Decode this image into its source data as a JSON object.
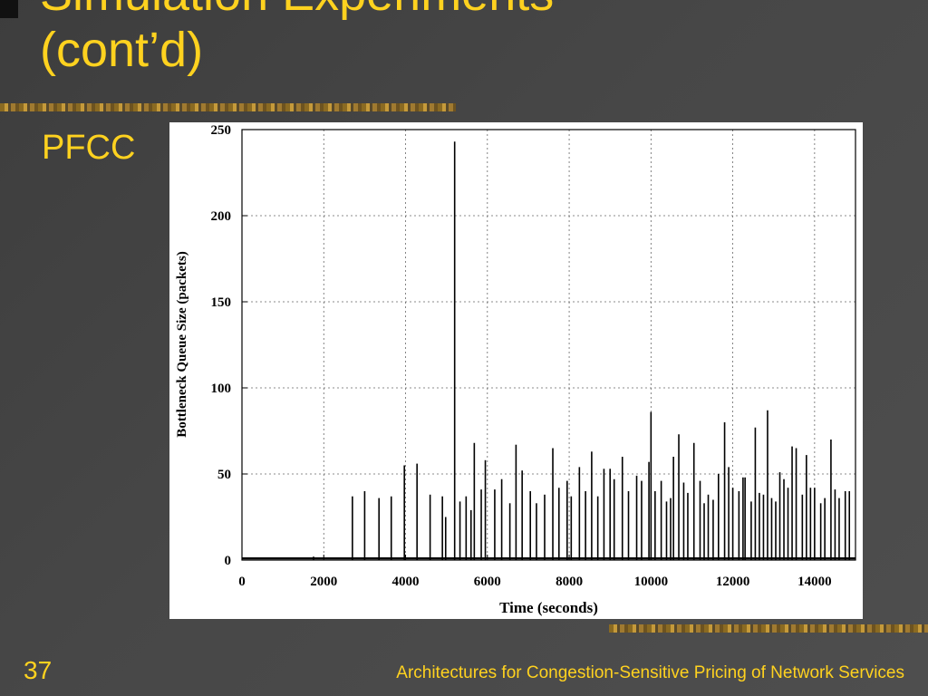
{
  "slide": {
    "title_lines": [
      "Simulation Experiments",
      "(cont’d)"
    ],
    "bullet": "PFCC",
    "number": "37",
    "footer": "Architectures for Congestion-Sensitive Pricing of Network Services",
    "colors": {
      "accent": "#ffd21f",
      "background": "#474747"
    }
  },
  "chart_data": {
    "type": "line",
    "title": "",
    "xlabel": "Time (seconds)",
    "ylabel": "Bottleneck Queue Size (packets)",
    "xlim": [
      0,
      15000
    ],
    "ylim": [
      0,
      250
    ],
    "xticks": [
      0,
      2000,
      4000,
      6000,
      8000,
      10000,
      12000,
      14000
    ],
    "yticks": [
      0,
      50,
      100,
      150,
      200,
      250
    ],
    "grid": true,
    "legend": "none",
    "baseline": 1,
    "series": [
      {
        "spikes": [
          [
            1750,
            2
          ],
          [
            2700,
            37
          ],
          [
            3000,
            40
          ],
          [
            3350,
            36
          ],
          [
            3650,
            37
          ],
          [
            3970,
            55
          ],
          [
            4280,
            56
          ],
          [
            4600,
            38
          ],
          [
            4900,
            37
          ],
          [
            4980,
            25
          ],
          [
            5200,
            243
          ],
          [
            5330,
            34
          ],
          [
            5480,
            37
          ],
          [
            5600,
            29
          ],
          [
            5680,
            68
          ],
          [
            5850,
            41
          ],
          [
            5950,
            58
          ],
          [
            6180,
            41
          ],
          [
            6350,
            47
          ],
          [
            6550,
            33
          ],
          [
            6700,
            67
          ],
          [
            6850,
            52
          ],
          [
            7050,
            40
          ],
          [
            7200,
            33
          ],
          [
            7400,
            38
          ],
          [
            7600,
            65
          ],
          [
            7750,
            42
          ],
          [
            7950,
            46
          ],
          [
            8050,
            37
          ],
          [
            8250,
            54
          ],
          [
            8400,
            40
          ],
          [
            8550,
            63
          ],
          [
            8700,
            37
          ],
          [
            8850,
            53
          ],
          [
            9000,
            53
          ],
          [
            9100,
            47
          ],
          [
            9300,
            60
          ],
          [
            9450,
            40
          ],
          [
            9650,
            49
          ],
          [
            9770,
            46
          ],
          [
            9950,
            57
          ],
          [
            10000,
            86
          ],
          [
            10100,
            40
          ],
          [
            10250,
            46
          ],
          [
            10380,
            34
          ],
          [
            10480,
            36
          ],
          [
            10550,
            60
          ],
          [
            10680,
            73
          ],
          [
            10800,
            45
          ],
          [
            10900,
            39
          ],
          [
            11050,
            68
          ],
          [
            11200,
            46
          ],
          [
            11300,
            33
          ],
          [
            11400,
            38
          ],
          [
            11520,
            35
          ],
          [
            11650,
            50
          ],
          [
            11800,
            80
          ],
          [
            11900,
            54
          ],
          [
            12000,
            42
          ],
          [
            12150,
            40
          ],
          [
            12250,
            48
          ],
          [
            12300,
            48
          ],
          [
            12450,
            34
          ],
          [
            12550,
            77
          ],
          [
            12650,
            39
          ],
          [
            12750,
            38
          ],
          [
            12850,
            87
          ],
          [
            12950,
            36
          ],
          [
            13050,
            34
          ],
          [
            13150,
            51
          ],
          [
            13250,
            47
          ],
          [
            13350,
            42
          ],
          [
            13450,
            66
          ],
          [
            13550,
            65
          ],
          [
            13700,
            38
          ],
          [
            13800,
            61
          ],
          [
            13900,
            42
          ],
          [
            14000,
            42
          ],
          [
            14150,
            33
          ],
          [
            14250,
            36
          ],
          [
            14400,
            70
          ],
          [
            14500,
            41
          ],
          [
            14600,
            36
          ],
          [
            14750,
            40
          ],
          [
            14850,
            40
          ]
        ]
      }
    ]
  }
}
